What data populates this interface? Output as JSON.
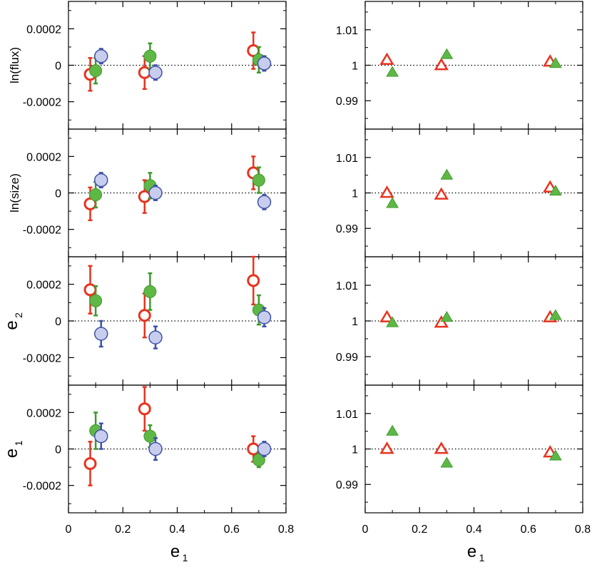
{
  "colors": {
    "red": "#e8331f",
    "green": "#5fb846",
    "green_edge": "#3f9a2c",
    "blue_fill": "#c8cdee",
    "blue_edge": "#3f51a8",
    "axis": "#000000"
  },
  "x_axis": {
    "label_main": "e",
    "label_sub": "1",
    "range": [
      0,
      0.8
    ],
    "ticks": [
      0,
      0.2,
      0.4,
      0.6,
      0.8
    ],
    "tick_labels": [
      "0",
      "0.2",
      "0.4",
      "0.6",
      "0.8"
    ]
  },
  "left_y": {
    "range": [
      -0.00035,
      0.00035
    ],
    "ticks": [
      -0.0002,
      0,
      0.0002
    ],
    "tick_labels": [
      "-0.0002",
      "0",
      "0.0002"
    ],
    "reference_line": 0
  },
  "right_y": {
    "range": [
      0.982,
      1.018
    ],
    "ticks": [
      0.99,
      1,
      1.01
    ],
    "tick_labels": [
      "0.99",
      "1",
      "1.01"
    ],
    "reference_line": 1
  },
  "chart_data": [
    {
      "type": "scatter",
      "panel": "left-row-1",
      "ylabel": "ln(flux)",
      "series": [
        {
          "marker": "open-circle",
          "color": "red",
          "x": [
            0.08,
            0.28,
            0.68
          ],
          "y": [
            -5e-05,
            -4e-05,
            8e-05
          ],
          "err": [
            9e-05,
            9e-05,
            0.0001
          ]
        },
        {
          "marker": "filled-circle",
          "color": "green",
          "x": [
            0.1,
            0.3,
            0.7
          ],
          "y": [
            -3e-05,
            5e-05,
            3e-05
          ],
          "err": [
            7e-05,
            7e-05,
            7e-05
          ]
        },
        {
          "marker": "shaded-circle",
          "color": "blue",
          "x": [
            0.12,
            0.32,
            0.72
          ],
          "y": [
            5e-05,
            -4e-05,
            1e-05
          ],
          "err": [
            4e-05,
            4e-05,
            4e-05
          ]
        }
      ]
    },
    {
      "type": "scatter",
      "panel": "left-row-2",
      "ylabel": "ln(size)",
      "series": [
        {
          "marker": "open-circle",
          "color": "red",
          "x": [
            0.08,
            0.28,
            0.68
          ],
          "y": [
            -6e-05,
            -2e-05,
            0.00011
          ],
          "err": [
            9e-05,
            9e-05,
            9e-05
          ]
        },
        {
          "marker": "filled-circle",
          "color": "green",
          "x": [
            0.1,
            0.3,
            0.7
          ],
          "y": [
            -1e-05,
            4e-05,
            7e-05
          ],
          "err": [
            7e-05,
            7e-05,
            7e-05
          ]
        },
        {
          "marker": "shaded-circle",
          "color": "blue",
          "x": [
            0.12,
            0.32,
            0.72
          ],
          "y": [
            7e-05,
            0.0,
            -5e-05
          ],
          "err": [
            4e-05,
            4e-05,
            4e-05
          ]
        }
      ]
    },
    {
      "type": "scatter",
      "panel": "left-row-3",
      "ylabel_main": "e",
      "ylabel_sub": "2",
      "series": [
        {
          "marker": "open-circle",
          "color": "red",
          "x": [
            0.08,
            0.28,
            0.68
          ],
          "y": [
            0.00017,
            3e-05,
            0.00022
          ],
          "err": [
            0.00013,
            0.00012,
            0.00013
          ]
        },
        {
          "marker": "filled-circle",
          "color": "green",
          "x": [
            0.1,
            0.3,
            0.7
          ],
          "y": [
            0.00011,
            0.00016,
            6e-05
          ],
          "err": [
            8e-05,
            0.0001,
            8e-05
          ]
        },
        {
          "marker": "shaded-circle",
          "color": "blue",
          "x": [
            0.12,
            0.32,
            0.72
          ],
          "y": [
            -7e-05,
            -9e-05,
            2e-05
          ],
          "err": [
            7e-05,
            6e-05,
            5e-05
          ]
        }
      ]
    },
    {
      "type": "scatter",
      "panel": "left-row-4",
      "ylabel_main": "e",
      "ylabel_sub": "1",
      "series": [
        {
          "marker": "open-circle",
          "color": "red",
          "x": [
            0.08,
            0.28,
            0.68
          ],
          "y": [
            -8e-05,
            0.00022,
            0.0
          ],
          "err": [
            0.00012,
            0.00012,
            7e-05
          ]
        },
        {
          "marker": "filled-circle",
          "color": "green",
          "x": [
            0.1,
            0.3,
            0.7
          ],
          "y": [
            0.0001,
            7e-05,
            -6e-05
          ],
          "err": [
            0.0001,
            6e-05,
            4e-05
          ]
        },
        {
          "marker": "shaded-circle",
          "color": "blue",
          "x": [
            0.12,
            0.32,
            0.72
          ],
          "y": [
            7e-05,
            0.0,
            0.0
          ],
          "err": [
            7e-05,
            6e-05,
            4e-05
          ]
        }
      ]
    },
    {
      "type": "scatter",
      "panel": "right-row-1",
      "series": [
        {
          "marker": "open-triangle",
          "color": "red",
          "x": [
            0.08,
            0.28,
            0.68
          ],
          "y": [
            1.0015,
            1.0,
            1.001
          ]
        },
        {
          "marker": "filled-triangle",
          "color": "green",
          "x": [
            0.1,
            0.3,
            0.7
          ],
          "y": [
            0.998,
            1.003,
            1.0005
          ]
        }
      ]
    },
    {
      "type": "scatter",
      "panel": "right-row-2",
      "series": [
        {
          "marker": "open-triangle",
          "color": "red",
          "x": [
            0.08,
            0.28,
            0.68
          ],
          "y": [
            1.0,
            0.9995,
            1.0015
          ]
        },
        {
          "marker": "filled-triangle",
          "color": "green",
          "x": [
            0.1,
            0.3,
            0.7
          ],
          "y": [
            0.997,
            1.005,
            1.0005
          ]
        }
      ]
    },
    {
      "type": "scatter",
      "panel": "right-row-3",
      "series": [
        {
          "marker": "open-triangle",
          "color": "red",
          "x": [
            0.08,
            0.28,
            0.68
          ],
          "y": [
            1.001,
            0.9995,
            1.001
          ]
        },
        {
          "marker": "filled-triangle",
          "color": "green",
          "x": [
            0.1,
            0.3,
            0.7
          ],
          "y": [
            0.9995,
            1.001,
            1.0015
          ]
        }
      ]
    },
    {
      "type": "scatter",
      "panel": "right-row-4",
      "series": [
        {
          "marker": "open-triangle",
          "color": "red",
          "x": [
            0.08,
            0.28,
            0.68
          ],
          "y": [
            1.0,
            1.0,
            0.999
          ]
        },
        {
          "marker": "filled-triangle",
          "color": "green",
          "x": [
            0.1,
            0.3,
            0.7
          ],
          "y": [
            1.005,
            0.996,
            0.998
          ]
        }
      ]
    }
  ]
}
